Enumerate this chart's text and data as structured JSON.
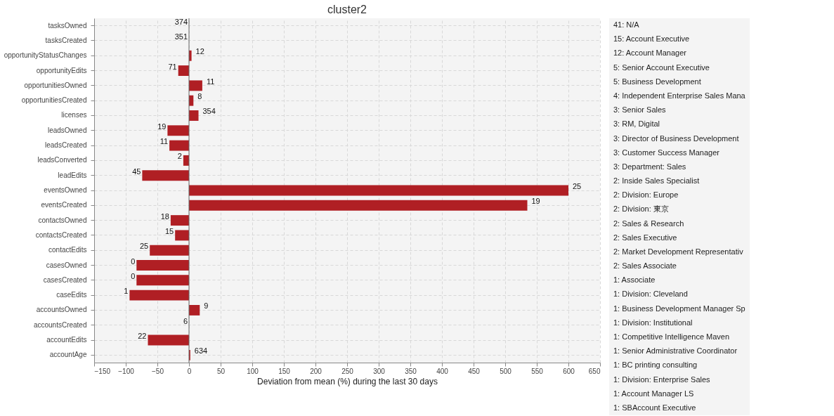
{
  "chart_data": [
    {
      "type": "bar",
      "orientation": "horizontal",
      "title": "cluster2",
      "xlabel": "Deviation from mean (%) during the last 30 days",
      "categories": [
        "tasksOwned",
        "tasksCreated",
        "opportunityStatusChanges",
        "opportunityEdits",
        "opportunitiesOwned",
        "opportunitiesCreated",
        "licenses",
        "leadsOwned",
        "leadsCreated",
        "leadsConverted",
        "leadEdits",
        "eventsOwned",
        "eventsCreated",
        "contactsOwned",
        "contactsCreated",
        "contactEdits",
        "casesOwned",
        "casesCreated",
        "caseEdits",
        "accountsOwned",
        "accountsCreated",
        "accountEdits",
        "accountAge"
      ],
      "values": [
        0,
        0,
        4,
        -17,
        21,
        7,
        15,
        -34,
        -31,
        -9,
        -74,
        600,
        535,
        -29,
        -22,
        -62,
        -83,
        -83,
        -94,
        17,
        0,
        -65,
        2
      ],
      "annotations": [
        {
          "text": "374",
          "x": 0,
          "y": "tasksOwned"
        },
        {
          "text": "351",
          "x": 0,
          "y": "tasksCreated"
        },
        {
          "text": "12",
          "x": 4,
          "y": "opportunityStatusChanges"
        },
        {
          "text": "71",
          "x": -17,
          "y": "opportunityEdits"
        },
        {
          "text": "11",
          "x": 21,
          "y": "opportunitiesOwned"
        },
        {
          "text": "8",
          "x": 7,
          "y": "opportunitiesCreated"
        },
        {
          "text": "354",
          "x": 15,
          "y": "licenses"
        },
        {
          "text": "19",
          "x": -34,
          "y": "leadsOwned"
        },
        {
          "text": "11",
          "x": -31,
          "y": "leadsCreated"
        },
        {
          "text": "2",
          "x": -9,
          "y": "leadsConverted"
        },
        {
          "text": "45",
          "x": -74,
          "y": "leadEdits"
        },
        {
          "text": "25",
          "x": 600,
          "y": "eventsOwned"
        },
        {
          "text": "19",
          "x": 535,
          "y": "eventsCreated"
        },
        {
          "text": "18",
          "x": -29,
          "y": "contactsOwned"
        },
        {
          "text": "15",
          "x": -22,
          "y": "contactsCreated"
        },
        {
          "text": "25",
          "x": -62,
          "y": "contactEdits"
        },
        {
          "text": "0",
          "x": -83,
          "y": "casesOwned"
        },
        {
          "text": "0",
          "x": -83,
          "y": "casesCreated"
        },
        {
          "text": "1",
          "x": -94,
          "y": "caseEdits"
        },
        {
          "text": "9",
          "x": 17,
          "y": "accountsOwned"
        },
        {
          "text": "6",
          "x": 0,
          "y": "accountsCreated"
        },
        {
          "text": "22",
          "x": -65,
          "y": "accountEdits"
        },
        {
          "text": "634",
          "x": 2,
          "y": "accountAge"
        }
      ],
      "color": "#b01f24",
      "xlim": [
        -150,
        650
      ],
      "xticks": [
        -150,
        -100,
        -50,
        0,
        50,
        100,
        150,
        200,
        250,
        300,
        350,
        400,
        450,
        500,
        550,
        600,
        650
      ],
      "grid": true,
      "ref_lines": [
        {
          "axis": "x",
          "value": 0,
          "color": "#666666"
        }
      ]
    },
    {
      "type": "other",
      "annotations": [
        "41: N/A",
        "15: Account Executive",
        "12: Account Manager",
        "5: Senior Account Executive",
        "5: Business Development",
        "4: Independent Enterprise Sales Mana",
        "3: Senior Sales",
        "3: RM, Digital",
        "3: Director of Business Development",
        "3: Customer Success Manager",
        "3: Department: Sales",
        "2: Inside Sales Specialist",
        "2: Division: Europe",
        "2: Division: 東京",
        "2: Sales & Research",
        "2: Sales Executive",
        "2: Market Development Representativ",
        "2: Sales Associate",
        "1: Associate",
        "1: Division: Cleveland",
        "1: Business Development Manager Sp",
        "1: Division: Institutional",
        "1: Competitive Intelligence Maven",
        "1: Senior Administrative Coordinator",
        "1: BC printing consulting",
        "1: Division: Enterprise Sales",
        "1: Account Manager LS",
        "1: SBAccount Executive"
      ]
    }
  ]
}
